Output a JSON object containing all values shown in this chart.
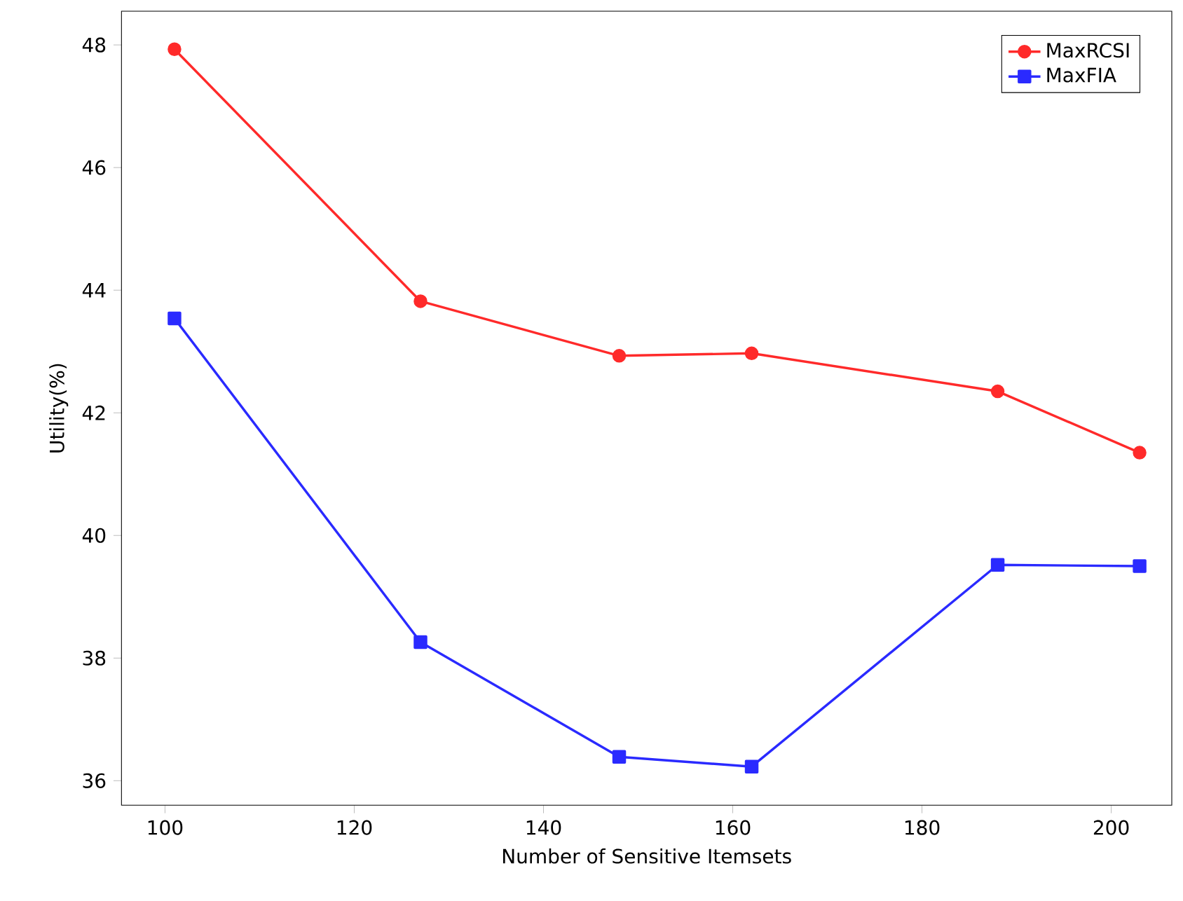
{
  "chart_data": {
    "type": "line",
    "xlabel": "Number of Sensitive Itemsets",
    "ylabel": "Utility(%)",
    "x": [
      101,
      127,
      148,
      162,
      188,
      203
    ],
    "series": [
      {
        "name": "MaxRCSI",
        "color": "#ff2a2a",
        "values": [
          47.93,
          43.82,
          42.93,
          42.97,
          42.35,
          41.35
        ],
        "marker": "circle"
      },
      {
        "name": "MaxFIA",
        "color": "#2a2aff",
        "values": [
          43.54,
          38.26,
          36.39,
          36.23,
          39.52,
          39.5
        ],
        "marker": "square"
      }
    ],
    "xlim": [
      95.4,
      206.4
    ],
    "ylim": [
      35.6,
      48.55
    ],
    "xticks": [
      100,
      120,
      140,
      160,
      180,
      200
    ],
    "yticks": [
      36,
      38,
      40,
      42,
      44,
      46,
      48
    ],
    "legend": "top right",
    "line_style": "solid"
  }
}
